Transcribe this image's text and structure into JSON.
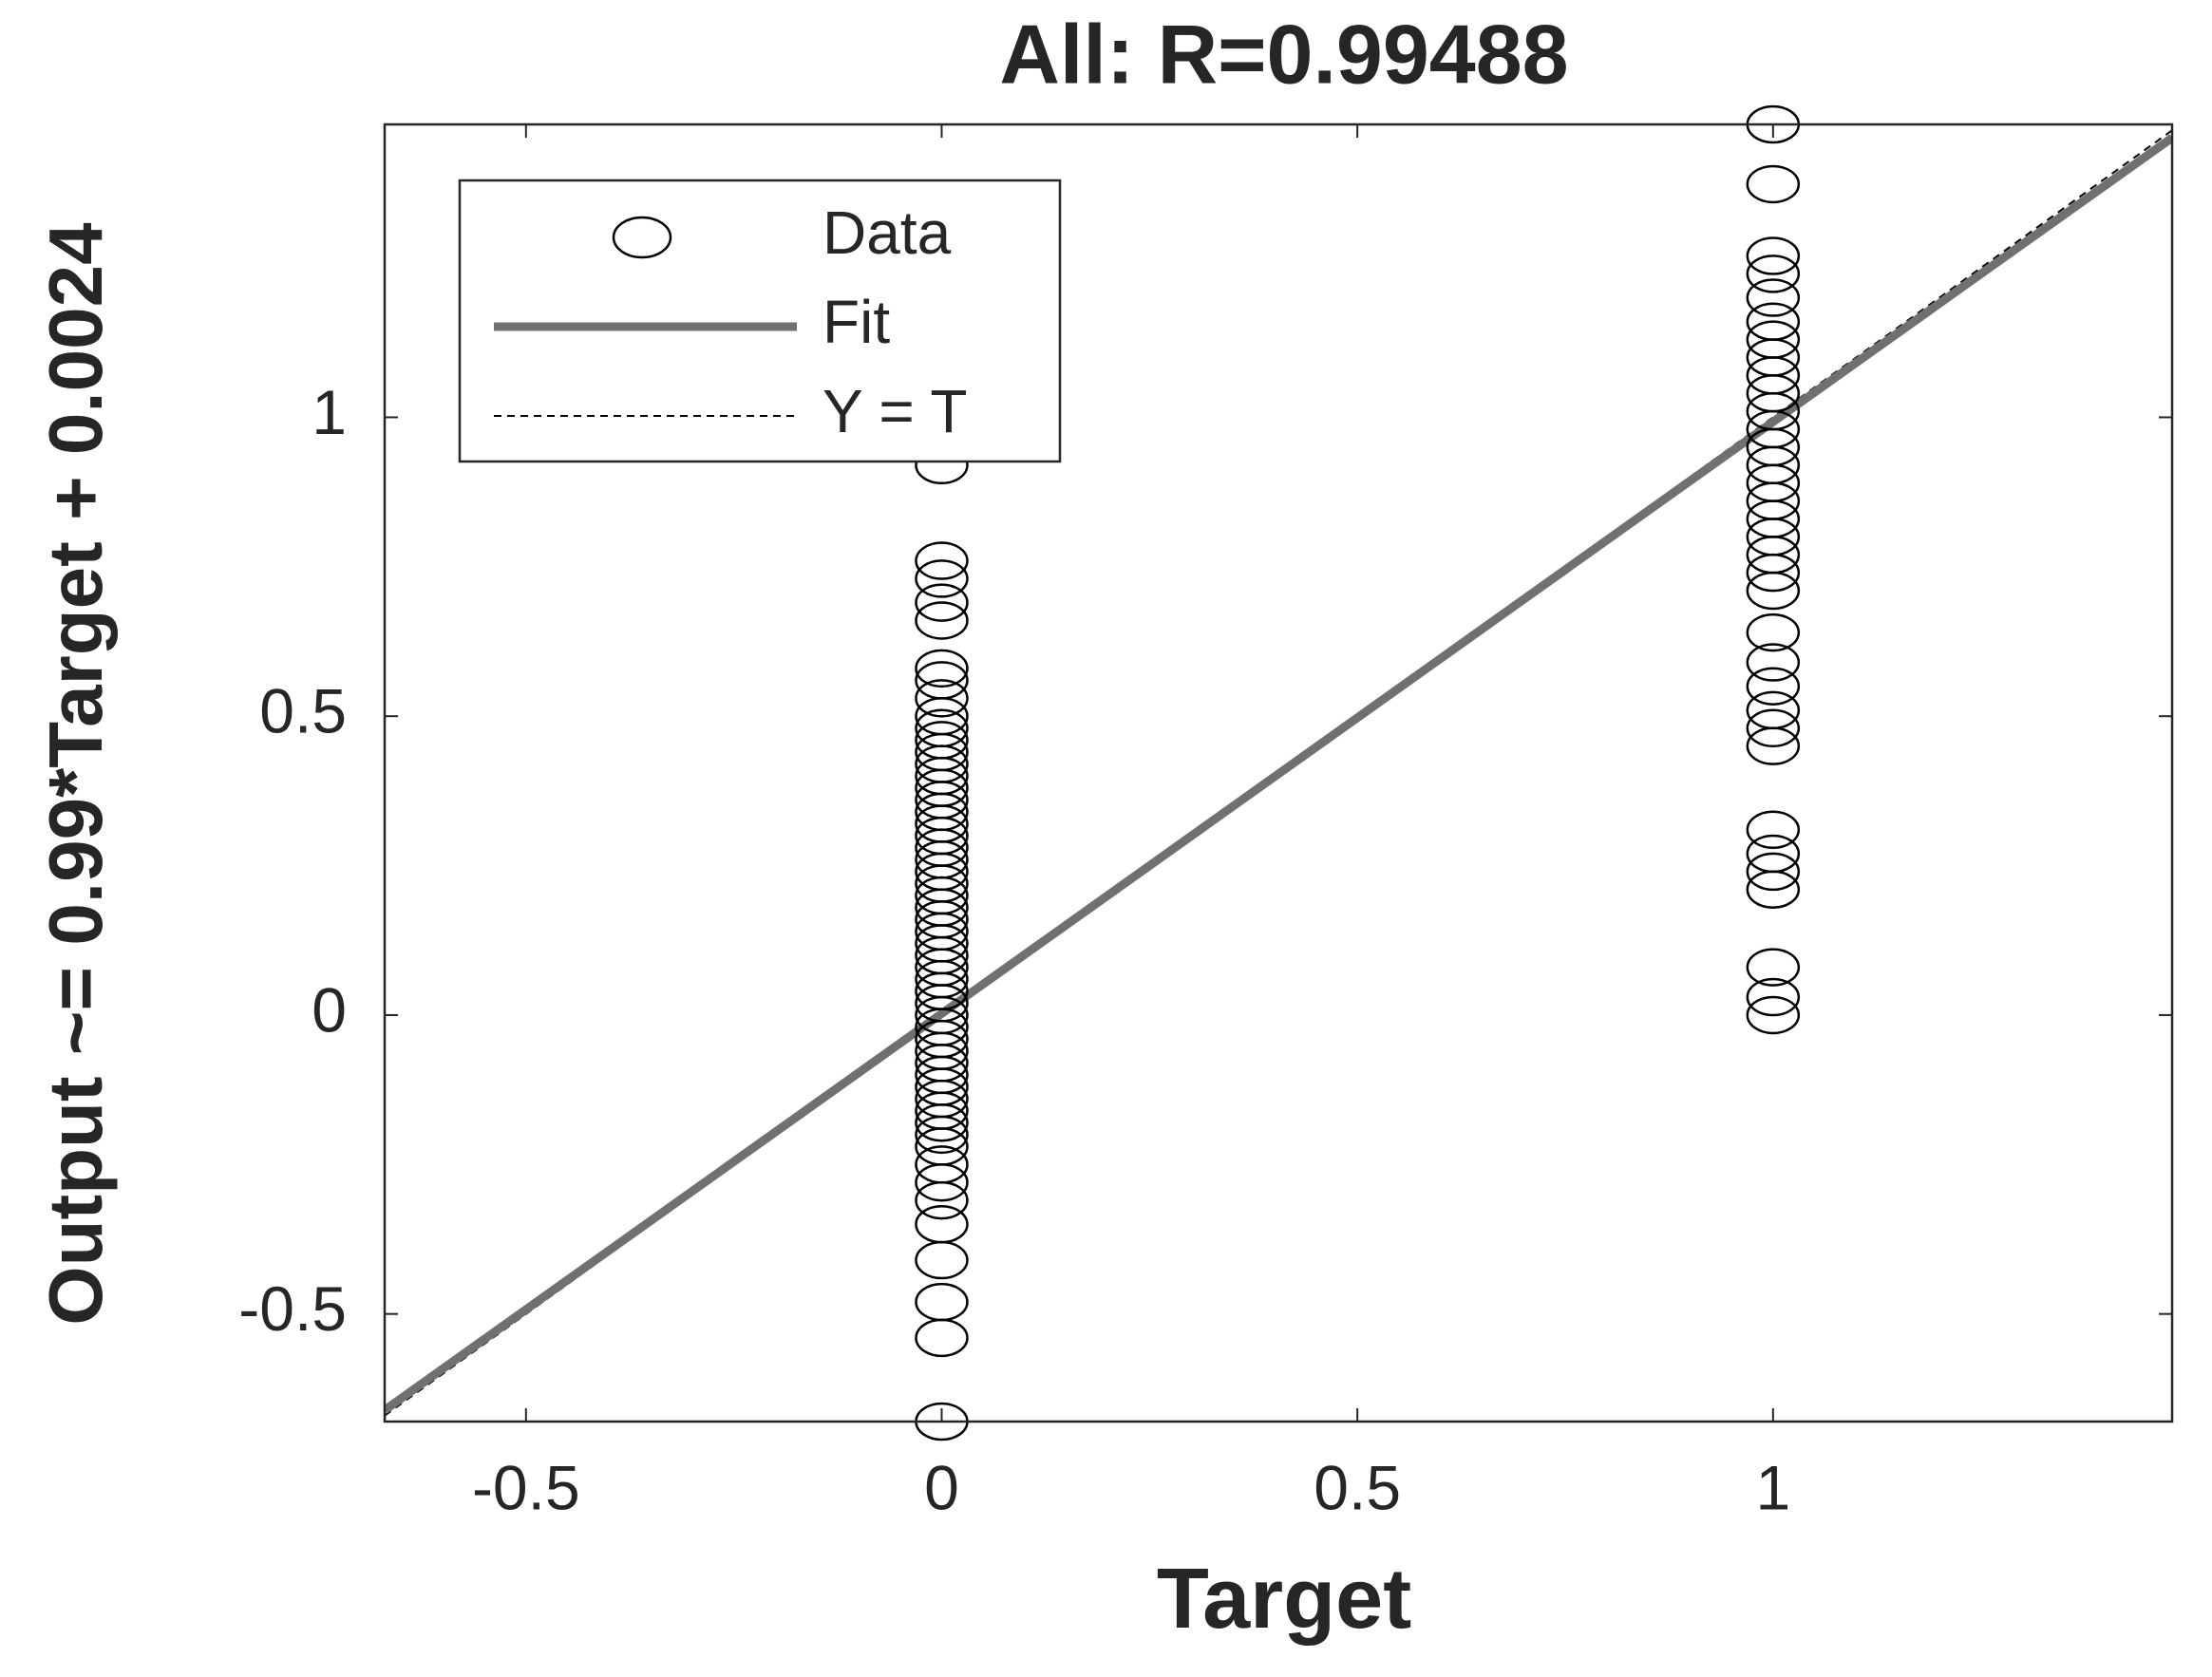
{
  "chart_data": {
    "type": "scatter",
    "title": "All: R=0.99488",
    "xlabel": "Target",
    "ylabel": "Output ~= 0.99*Target + 0.0024",
    "xlim": [
      -0.67,
      1.48
    ],
    "ylim": [
      -0.68,
      1.49
    ],
    "xticks": [
      -0.5,
      0,
      0.5,
      1
    ],
    "yticks": [
      -0.5,
      0,
      0.5,
      1
    ],
    "grid": false,
    "legend": "northwest",
    "series": [
      {
        "name": "Data",
        "color": "#000000",
        "marker": "o",
        "x": [
          0,
          0,
          0,
          0,
          0,
          0,
          0,
          0,
          0,
          0,
          0,
          0,
          0,
          0,
          0,
          0,
          0,
          0,
          0,
          0,
          0,
          0,
          0,
          0,
          0,
          0,
          0,
          0,
          0,
          0,
          0,
          0,
          0,
          0,
          0,
          0,
          0,
          0,
          0,
          0,
          0,
          0,
          0,
          0,
          0,
          0,
          0,
          0,
          0,
          0,
          0,
          0,
          0,
          1,
          1,
          1,
          1,
          1,
          1,
          1,
          1,
          1,
          1,
          1,
          1,
          1,
          1,
          1,
          1,
          1,
          1,
          1,
          1,
          1,
          1,
          1,
          1,
          1,
          1,
          1,
          1,
          1,
          1,
          1,
          1,
          1,
          1
        ],
        "values": [
          -0.68,
          -0.54,
          -0.48,
          -0.41,
          -0.35,
          -0.31,
          -0.28,
          -0.25,
          -0.22,
          -0.2,
          -0.18,
          -0.16,
          -0.14,
          -0.12,
          -0.1,
          -0.08,
          -0.06,
          -0.04,
          -0.02,
          0,
          0.02,
          0.04,
          0.06,
          0.08,
          0.1,
          0.12,
          0.14,
          0.16,
          0.18,
          0.2,
          0.22,
          0.24,
          0.26,
          0.28,
          0.3,
          0.32,
          0.34,
          0.36,
          0.38,
          0.4,
          0.42,
          0.44,
          0.46,
          0.48,
          0.5,
          0.53,
          0.56,
          0.58,
          0.66,
          0.69,
          0.73,
          0.76,
          0.92,
          0,
          0.03,
          0.08,
          0.21,
          0.24,
          0.27,
          0.31,
          0.45,
          0.48,
          0.51,
          0.55,
          0.59,
          0.64,
          0.71,
          0.74,
          0.77,
          0.8,
          0.83,
          0.86,
          0.89,
          0.92,
          0.95,
          0.98,
          1.01,
          1.04,
          1.07,
          1.1,
          1.13,
          1.16,
          1.2,
          1.24,
          1.27,
          1.39,
          1.49
        ]
      },
      {
        "name": "Fit",
        "color": "#707070",
        "linestyle": "solid",
        "x": [
          -0.67,
          1.48
        ],
        "values": [
          -0.6609,
          1.4676
        ]
      },
      {
        "name": "Y = T",
        "color": "#000000",
        "linestyle": "dashed",
        "x": [
          -0.67,
          1.48
        ],
        "values": [
          -0.67,
          1.48
        ]
      }
    ]
  }
}
